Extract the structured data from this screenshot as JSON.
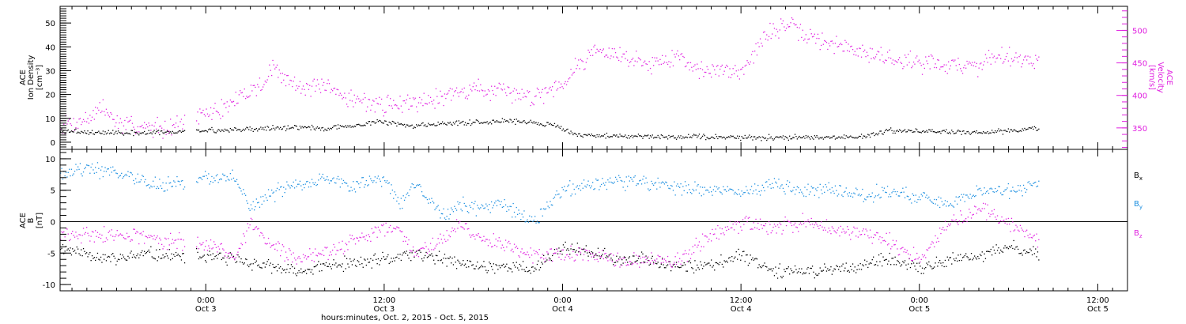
{
  "figure": {
    "xaxis_title": "hours:minutes, Oct.  2, 2015 - Oct.  5, 2015",
    "time_ticks": [
      {
        "time": "0:00",
        "date": "Oct 3",
        "t": 24
      },
      {
        "time": "12:00",
        "date": "Oct 3",
        "t": 36
      },
      {
        "time": "0:00",
        "date": "Oct 4",
        "t": 48
      },
      {
        "time": "12:00",
        "date": "Oct 4",
        "t": 60
      },
      {
        "time": "0:00",
        "date": "Oct 5",
        "t": 72
      },
      {
        "time": "12:00",
        "date": "Oct 5",
        "t": 84
      }
    ]
  },
  "chart_data": [
    {
      "type": "scatter",
      "panel": "top",
      "xlim_hours_from_oct2_0000": [
        14.2,
        86.0
      ],
      "left_axis": {
        "label_lines": [
          "ACE",
          "Ion Density",
          "[cm⁻³]"
        ],
        "ylim": [
          -3,
          57
        ],
        "ticks": [
          0,
          10,
          20,
          30,
          40,
          50
        ]
      },
      "right_axis": {
        "label_lines": [
          "ACE",
          "Velocity",
          "[km/s]"
        ],
        "ylim": [
          317,
          537
        ],
        "ticks": [
          350,
          400,
          450,
          500
        ],
        "color": "#e020e0"
      },
      "series": [
        {
          "name": "Ion Density",
          "axis": "left",
          "color": "#000000",
          "x": [
            14.2,
            16,
            18,
            20,
            22,
            24,
            26,
            28,
            30,
            32,
            34,
            35.5,
            37,
            38,
            40,
            42,
            44,
            46,
            47.5,
            48.5,
            50,
            52,
            54,
            56,
            58,
            60,
            62,
            64,
            66,
            68,
            70,
            72,
            74,
            76,
            78,
            80
          ],
          "y": [
            5,
            4.5,
            4,
            4,
            4.5,
            5,
            5.5,
            6,
            6.5,
            6,
            7,
            9,
            8,
            7,
            8,
            8.5,
            9,
            8.5,
            7,
            4,
            3,
            2.8,
            2.5,
            2.5,
            2.3,
            2.2,
            2.2,
            2.3,
            2.3,
            2.4,
            5,
            5,
            4.5,
            4,
            5,
            6
          ]
        },
        {
          "name": "Velocity",
          "axis": "right",
          "color": "#e020e0",
          "x": [
            14.2,
            15,
            16,
            17,
            18,
            19,
            20,
            21,
            22,
            23,
            24,
            25,
            26,
            27,
            28,
            28.5,
            29,
            30,
            32,
            34,
            36,
            38,
            40,
            42,
            44,
            46,
            47,
            48,
            49,
            50,
            52,
            54,
            56,
            57,
            58,
            60,
            61,
            62,
            63,
            64,
            66,
            68,
            70,
            72,
            74,
            76,
            77,
            78,
            80
          ],
          "y": [
            358,
            358,
            365,
            382,
            358,
            354,
            351,
            353,
            356,
            363,
            372,
            380,
            392,
            410,
            420,
            450,
            430,
            418,
            410,
            395,
            385,
            392,
            400,
            412,
            404,
            400,
            410,
            420,
            448,
            470,
            460,
            450,
            462,
            440,
            438,
            440,
            470,
            500,
            510,
            495,
            480,
            468,
            458,
            452,
            448,
            445,
            465,
            460,
            455
          ]
        }
      ]
    },
    {
      "type": "scatter",
      "panel": "bottom",
      "xlim_hours_from_oct2_0000": [
        14.2,
        86.0
      ],
      "left_axis": {
        "label_lines": [
          "ACE",
          "B",
          "[nT]"
        ],
        "ylim": [
          -11,
          11.5
        ],
        "ticks": [
          -10,
          -5,
          0,
          5,
          10
        ]
      },
      "zero_line": true,
      "legend": "right",
      "series": [
        {
          "name": "Bx",
          "legend_main": "B",
          "legend_sub": "x",
          "color": "#000000",
          "x": [
            14.2,
            16,
            18,
            20,
            22,
            24,
            26,
            28,
            30,
            32,
            34,
            36,
            38,
            40,
            42,
            44,
            46,
            48,
            50,
            52,
            54,
            56,
            58,
            60,
            62,
            64,
            66,
            68,
            70,
            72,
            74,
            76,
            78,
            80
          ],
          "y": [
            -4,
            -5,
            -6,
            -5,
            -5.5,
            -5.5,
            -6,
            -7,
            -8,
            -7,
            -6.5,
            -6,
            -5,
            -6,
            -7,
            -7,
            -7.5,
            -4,
            -5,
            -6,
            -6,
            -7,
            -7,
            -5,
            -7.5,
            -8,
            -7.5,
            -7,
            -6,
            -7.5,
            -6,
            -5.5,
            -4,
            -5
          ]
        },
        {
          "name": "By",
          "legend_main": "B",
          "legend_sub": "y",
          "color": "#1a8ee0",
          "x": [
            14.2,
            16,
            18,
            19,
            20,
            22,
            24,
            26,
            27,
            28,
            30,
            32,
            34,
            36,
            37,
            38,
            40,
            41,
            42,
            44,
            46,
            48,
            50,
            52,
            54,
            56,
            58,
            60,
            62,
            64,
            66,
            68,
            70,
            72,
            74,
            76,
            78,
            80
          ],
          "y": [
            8,
            8.5,
            8,
            7,
            6,
            6,
            7,
            7,
            2,
            4,
            6,
            7,
            6,
            7,
            3,
            6,
            1,
            3,
            2,
            3,
            0,
            5,
            6,
            6.5,
            6,
            5.5,
            5,
            5,
            6,
            5,
            5,
            4,
            5,
            4,
            3,
            5,
            5,
            6
          ]
        },
        {
          "name": "Bz",
          "legend_main": "B",
          "legend_sub": "z",
          "color": "#e020e0",
          "x": [
            14.2,
            16,
            18,
            20,
            22,
            24,
            26,
            27,
            28,
            30,
            32,
            34,
            36,
            37,
            38,
            40,
            41,
            42,
            44,
            46,
            48,
            50,
            52,
            54,
            56,
            58,
            60,
            62,
            64,
            66,
            68,
            70,
            72,
            74,
            76,
            78,
            80
          ],
          "y": [
            -2,
            -2,
            -2,
            -2.5,
            -3,
            -4,
            -5,
            0,
            -3,
            -6,
            -5,
            -3,
            -1,
            -1,
            -5,
            -3,
            0,
            -2,
            -4,
            -5,
            -5,
            -5,
            -6,
            -6,
            -6,
            -2,
            0,
            -1,
            0,
            -1,
            -2,
            -3,
            -6,
            0,
            2,
            0,
            -3
          ]
        }
      ]
    }
  ]
}
